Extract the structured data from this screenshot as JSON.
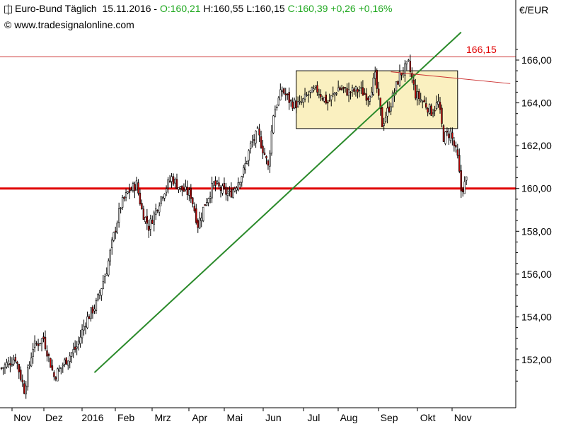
{
  "header": {
    "symbol": "Euro-Bund Täglich",
    "date": "15.11.2016",
    "sep": "-",
    "open": "O:160,21",
    "high": "H:160,55",
    "low": "L:160,15",
    "close": "C:160,39",
    "change": "+0,26",
    "change_pct": "+0,16%",
    "copyright": "© www.tradesignalonline.com"
  },
  "currency": "€/EUR",
  "level_label": "166,15",
  "colors": {
    "up_candle": "#ffffff",
    "down_candle": "#cc0000",
    "trendline": "#2a8a2a",
    "support": "#e00000",
    "range_box_fill": "#faf0c0",
    "text_green": "#1fa81f"
  },
  "chart_data": {
    "type": "candlestick",
    "title": "Euro-Bund Täglich",
    "ylabel": "€/EUR",
    "ylim": [
      150.2,
      167.0
    ],
    "y_ticks": [
      "152,00",
      "154,00",
      "156,00",
      "158,00",
      "160,00",
      "162,00",
      "164,00",
      "166,00"
    ],
    "y_tick_values": [
      152,
      154,
      156,
      158,
      160,
      162,
      164,
      166
    ],
    "x_ticks": [
      "Nov",
      "Dez",
      "2016",
      "Feb",
      "Mrz",
      "Apr",
      "Mai",
      "Jun",
      "Jul",
      "Aug",
      "Sep",
      "Okt",
      "Nov"
    ],
    "x_tick_days": [
      12,
      30,
      52,
      71,
      92,
      113,
      133,
      155,
      178,
      198,
      221,
      243,
      263
    ],
    "days_total": 282,
    "close_path": [
      [
        0,
        151.6
      ],
      [
        8,
        152.1
      ],
      [
        13,
        150.6
      ],
      [
        18,
        152.6
      ],
      [
        24,
        153.0
      ],
      [
        30,
        151.2
      ],
      [
        37,
        152.0
      ],
      [
        43,
        152.6
      ],
      [
        48,
        153.8
      ],
      [
        54,
        154.6
      ],
      [
        60,
        156.2
      ],
      [
        64,
        157.8
      ],
      [
        68,
        159.2
      ],
      [
        72,
        159.8
      ],
      [
        77,
        160.2
      ],
      [
        80,
        159.0
      ],
      [
        84,
        158.2
      ],
      [
        88,
        159.0
      ],
      [
        92,
        159.8
      ],
      [
        97,
        160.5
      ],
      [
        102,
        160.0
      ],
      [
        108,
        159.7
      ],
      [
        112,
        158.3
      ],
      [
        116,
        159.3
      ],
      [
        121,
        160.2
      ],
      [
        126,
        159.9
      ],
      [
        130,
        159.7
      ],
      [
        134,
        160.2
      ],
      [
        138,
        160.8
      ],
      [
        142,
        162.0
      ],
      [
        146,
        162.6
      ],
      [
        150,
        161.6
      ],
      [
        152,
        161.0
      ],
      [
        155,
        163.5
      ],
      [
        160,
        164.6
      ],
      [
        165,
        164.0
      ],
      [
        170,
        163.9
      ],
      [
        175,
        164.4
      ],
      [
        180,
        164.6
      ],
      [
        186,
        164.0
      ],
      [
        192,
        164.7
      ],
      [
        198,
        164.5
      ],
      [
        204,
        164.6
      ],
      [
        209,
        164.3
      ],
      [
        213,
        165.2
      ],
      [
        217,
        163.0
      ],
      [
        222,
        164.0
      ],
      [
        227,
        165.3
      ],
      [
        232,
        165.8
      ],
      [
        236,
        164.4
      ],
      [
        241,
        164.0
      ],
      [
        245,
        163.6
      ],
      [
        249,
        164.0
      ],
      [
        252,
        162.4
      ],
      [
        256,
        162.6
      ],
      [
        260,
        161.4
      ],
      [
        262,
        159.9
      ],
      [
        264,
        160.2
      ],
      [
        265,
        160.4
      ]
    ],
    "trendline": {
      "from": [
        53,
        151.4
      ],
      "to": [
        262,
        167.3
      ],
      "extend_to_day": 262
    },
    "resistance_line": {
      "value": 166.15,
      "label": "166,15"
    },
    "support_line": {
      "value": 160.0
    },
    "range_box": {
      "start_day": 168,
      "end_day": 260,
      "low": 162.8,
      "high": 165.5
    },
    "descending_line": {
      "from": [
        222,
        165.45
      ],
      "to": [
        290,
        164.9
      ]
    },
    "grid": false,
    "legend": "none"
  }
}
